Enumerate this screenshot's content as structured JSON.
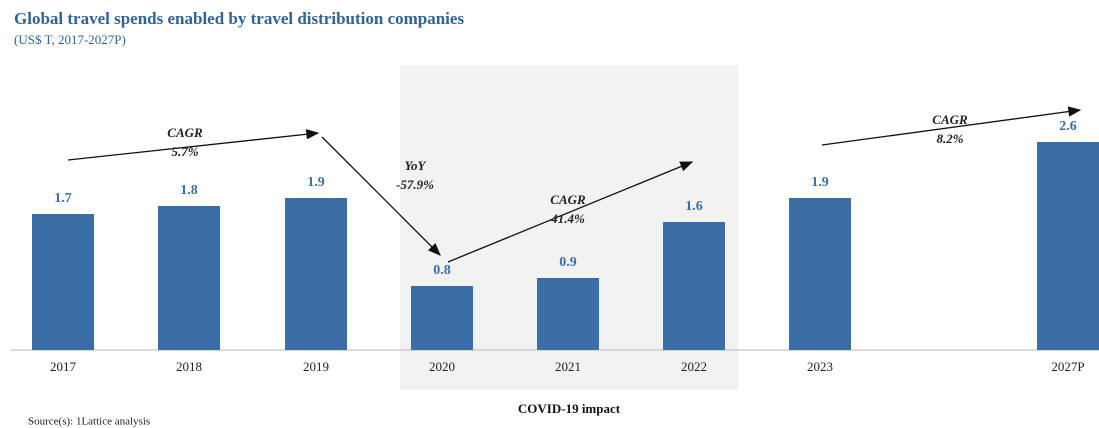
{
  "chart_data": {
    "type": "bar",
    "title": "Global travel spends enabled by travel distribution companies",
    "subtitle": "(US$ T, 2017-2027P)",
    "categories": [
      "2017",
      "2018",
      "2019",
      "2020",
      "2021",
      "2022",
      "2023",
      "2027P"
    ],
    "values": [
      1.7,
      1.8,
      1.9,
      0.8,
      0.9,
      1.6,
      1.9,
      2.6
    ],
    "color": "#3a6ea5",
    "annotations": [
      {
        "label": "CAGR",
        "value": "5.7%"
      },
      {
        "label": "YoY",
        "value": "-57.9%"
      },
      {
        "label": "CAGR",
        "value": "41.4%"
      },
      {
        "label": "CAGR",
        "value": "8.2%"
      }
    ],
    "highlight_label": "COVID-19 impact",
    "source": "Source(s): 1Lattice analysis"
  }
}
